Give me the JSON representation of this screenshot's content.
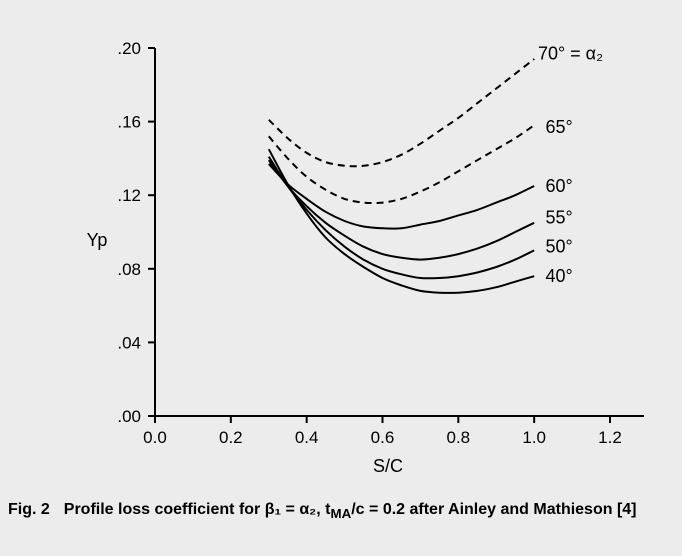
{
  "chart_data": {
    "type": "line",
    "xlabel": "S/C",
    "ylabel": "Yp",
    "xlim": [
      0.0,
      1.3
    ],
    "ylim": [
      0.0,
      0.2
    ],
    "x_ticks": [
      "0.0",
      "0.2",
      "0.4",
      "0.6",
      "0.8",
      "1.0",
      "1.2"
    ],
    "y_ticks": [
      ".00",
      ".04",
      ".08",
      ".12",
      ".16",
      ".20"
    ],
    "grid": false,
    "legend": "none",
    "series": [
      {
        "name": "40°",
        "style": "solid",
        "points": [
          [
            0.3,
            0.145
          ],
          [
            0.35,
            0.126
          ],
          [
            0.4,
            0.11
          ],
          [
            0.45,
            0.097
          ],
          [
            0.5,
            0.088
          ],
          [
            0.55,
            0.081
          ],
          [
            0.6,
            0.075
          ],
          [
            0.65,
            0.071
          ],
          [
            0.7,
            0.068
          ],
          [
            0.75,
            0.067
          ],
          [
            0.8,
            0.067
          ],
          [
            0.85,
            0.068
          ],
          [
            0.9,
            0.07
          ],
          [
            0.95,
            0.073
          ],
          [
            1.0,
            0.076
          ]
        ]
      },
      {
        "name": "50°",
        "style": "solid",
        "points": [
          [
            0.3,
            0.141
          ],
          [
            0.35,
            0.125
          ],
          [
            0.4,
            0.112
          ],
          [
            0.45,
            0.101
          ],
          [
            0.5,
            0.092
          ],
          [
            0.55,
            0.085
          ],
          [
            0.6,
            0.08
          ],
          [
            0.65,
            0.077
          ],
          [
            0.7,
            0.075
          ],
          [
            0.75,
            0.075
          ],
          [
            0.8,
            0.076
          ],
          [
            0.85,
            0.078
          ],
          [
            0.9,
            0.081
          ],
          [
            0.95,
            0.085
          ],
          [
            1.0,
            0.09
          ]
        ]
      },
      {
        "name": "55°",
        "style": "solid",
        "points": [
          [
            0.3,
            0.139
          ],
          [
            0.35,
            0.125
          ],
          [
            0.4,
            0.114
          ],
          [
            0.45,
            0.105
          ],
          [
            0.5,
            0.098
          ],
          [
            0.55,
            0.092
          ],
          [
            0.6,
            0.088
          ],
          [
            0.65,
            0.086
          ],
          [
            0.7,
            0.085
          ],
          [
            0.75,
            0.086
          ],
          [
            0.8,
            0.088
          ],
          [
            0.85,
            0.091
          ],
          [
            0.9,
            0.095
          ],
          [
            0.95,
            0.1
          ],
          [
            1.0,
            0.105
          ]
        ]
      },
      {
        "name": "60°",
        "style": "solid",
        "points": [
          [
            0.3,
            0.137
          ],
          [
            0.35,
            0.126
          ],
          [
            0.4,
            0.118
          ],
          [
            0.45,
            0.111
          ],
          [
            0.5,
            0.106
          ],
          [
            0.55,
            0.103
          ],
          [
            0.6,
            0.102
          ],
          [
            0.65,
            0.102
          ],
          [
            0.7,
            0.104
          ],
          [
            0.75,
            0.106
          ],
          [
            0.8,
            0.109
          ],
          [
            0.85,
            0.112
          ],
          [
            0.9,
            0.116
          ],
          [
            0.95,
            0.12
          ],
          [
            1.0,
            0.125
          ]
        ]
      },
      {
        "name": "65°",
        "style": "dashed",
        "points": [
          [
            0.3,
            0.152
          ],
          [
            0.35,
            0.14
          ],
          [
            0.4,
            0.13
          ],
          [
            0.45,
            0.123
          ],
          [
            0.5,
            0.118
          ],
          [
            0.55,
            0.116
          ],
          [
            0.6,
            0.116
          ],
          [
            0.65,
            0.118
          ],
          [
            0.7,
            0.122
          ],
          [
            0.75,
            0.127
          ],
          [
            0.8,
            0.133
          ],
          [
            0.85,
            0.139
          ],
          [
            0.9,
            0.145
          ],
          [
            0.95,
            0.151
          ],
          [
            1.0,
            0.158
          ]
        ]
      },
      {
        "name": "70°",
        "style": "dashed",
        "points": [
          [
            0.3,
            0.161
          ],
          [
            0.35,
            0.151
          ],
          [
            0.4,
            0.143
          ],
          [
            0.45,
            0.138
          ],
          [
            0.5,
            0.136
          ],
          [
            0.55,
            0.136
          ],
          [
            0.6,
            0.138
          ],
          [
            0.65,
            0.142
          ],
          [
            0.7,
            0.148
          ],
          [
            0.75,
            0.155
          ],
          [
            0.8,
            0.162
          ],
          [
            0.85,
            0.17
          ],
          [
            0.9,
            0.178
          ],
          [
            0.95,
            0.186
          ],
          [
            1.0,
            0.194
          ]
        ]
      }
    ],
    "curve_labels": [
      {
        "series": 0,
        "text": "40°",
        "x": 1.03,
        "y": 0.076
      },
      {
        "series": 1,
        "text": "50°",
        "x": 1.03,
        "y": 0.092
      },
      {
        "series": 2,
        "text": "55°",
        "x": 1.03,
        "y": 0.108
      },
      {
        "series": 3,
        "text": "60°",
        "x": 1.03,
        "y": 0.125
      },
      {
        "series": 4,
        "text": "65°",
        "x": 1.03,
        "y": 0.157
      },
      {
        "series": 5,
        "text": "70° = α₂",
        "x": 1.01,
        "y": 0.197
      }
    ]
  },
  "caption": {
    "figure": "Fig. 2",
    "text": "Profile loss coefficient for β₁ = α₂, t",
    "sub": "MA",
    "text2": "/c = 0.2 after Ainley and Mathieson [4]"
  }
}
